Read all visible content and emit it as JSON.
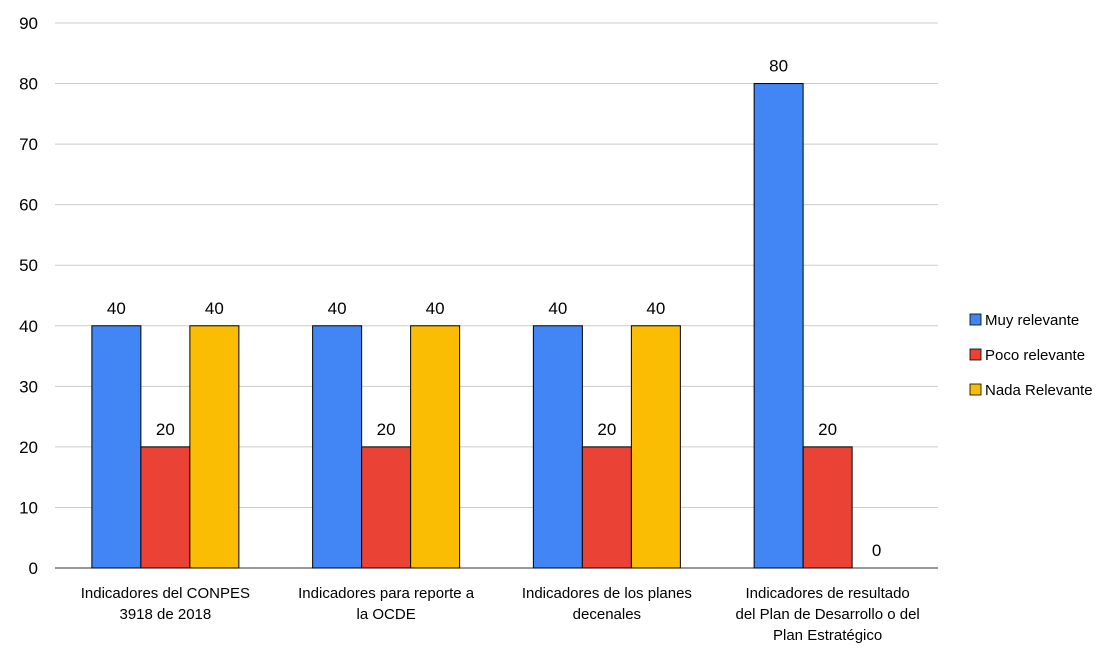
{
  "chart_data": {
    "type": "bar",
    "title": "",
    "xlabel": "",
    "ylabel": "",
    "ylim": [
      0,
      90
    ],
    "ytick_step": 10,
    "grid": true,
    "legend_position": "right",
    "categories": [
      [
        "Indicadores del CONPES",
        "3918 de 2018"
      ],
      [
        "Indicadores para reporte a",
        "la OCDE"
      ],
      [
        "Indicadores de los planes",
        "decenales"
      ],
      [
        "Indicadores de resultado",
        "del Plan de Desarrollo o del",
        "Plan Estratégico"
      ]
    ],
    "series": [
      {
        "name": "Muy relevante",
        "color": "#4285f4",
        "values": [
          40,
          40,
          40,
          80
        ]
      },
      {
        "name": "Poco relevante",
        "color": "#ea4335",
        "values": [
          20,
          20,
          20,
          20
        ]
      },
      {
        "name": "Nada Relevante",
        "color": "#fbbc04",
        "values": [
          40,
          40,
          40,
          0
        ]
      }
    ]
  }
}
